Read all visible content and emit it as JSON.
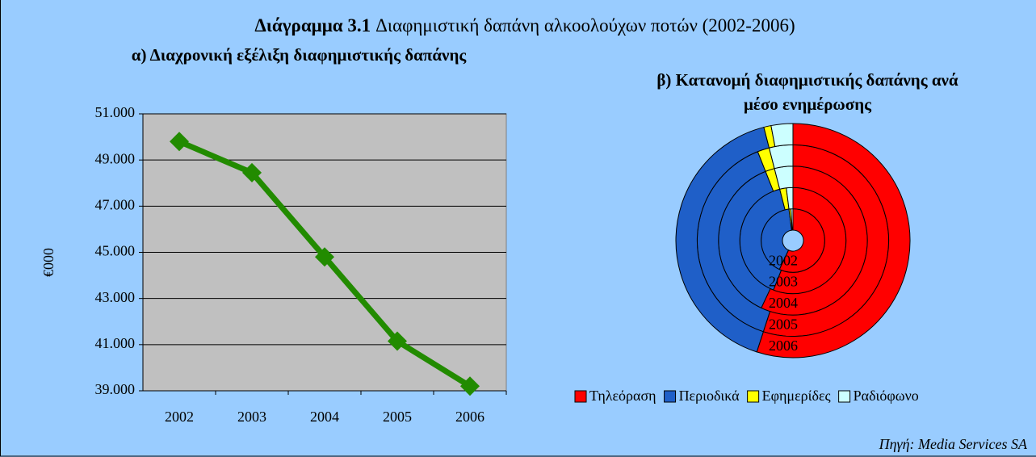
{
  "header": {
    "label": "Διάγραμμα 3.1",
    "title": "Διαφημιστική δαπάνη αλκοολούχων ποτών (2002-2006)"
  },
  "source": "Πηγή: Media Services SA",
  "chart_data": [
    {
      "type": "line",
      "title": "α) Διαχρονική εξέλιξη διαφημιστικής δαπάνης",
      "ylabel": "€000",
      "categories": [
        "2002",
        "2003",
        "2004",
        "2005",
        "2006"
      ],
      "values": [
        49800,
        48450,
        44800,
        41150,
        39200
      ],
      "color": "#228b00",
      "ylim": [
        39000,
        51000
      ],
      "yticks": [
        {
          "value": 39000,
          "label": "39.000"
        },
        {
          "value": 41000,
          "label": "41.000"
        },
        {
          "value": 43000,
          "label": "43.000"
        },
        {
          "value": 45000,
          "label": "45.000"
        },
        {
          "value": 47000,
          "label": "47.000"
        },
        {
          "value": 49000,
          "label": "49.000"
        },
        {
          "value": 51000,
          "label": "51.000"
        }
      ],
      "grid": true
    },
    {
      "type": "donut",
      "title": "β) Κατανομή διαφημιστικής δαπάνης ανά μέσο ενημέρωσης",
      "categories": [
        "Τηλεόραση",
        "Περιοδικά",
        "Εφημερίδες",
        "Ραδιόφωνο"
      ],
      "colors": [
        "#ff0000",
        "#1f5fc8",
        "#ffff00",
        "#ccffff"
      ],
      "series": [
        {
          "name": "2002",
          "values": [
            57,
            41,
            1,
            1
          ]
        },
        {
          "name": "2003",
          "values": [
            56,
            40,
            2,
            2
          ]
        },
        {
          "name": "2004",
          "values": [
            57,
            37,
            2,
            4
          ]
        },
        {
          "name": "2005",
          "values": [
            55,
            39,
            2,
            4
          ]
        },
        {
          "name": "2006",
          "values": [
            55,
            41,
            1,
            3
          ]
        }
      ],
      "legend": "bottom"
    }
  ]
}
